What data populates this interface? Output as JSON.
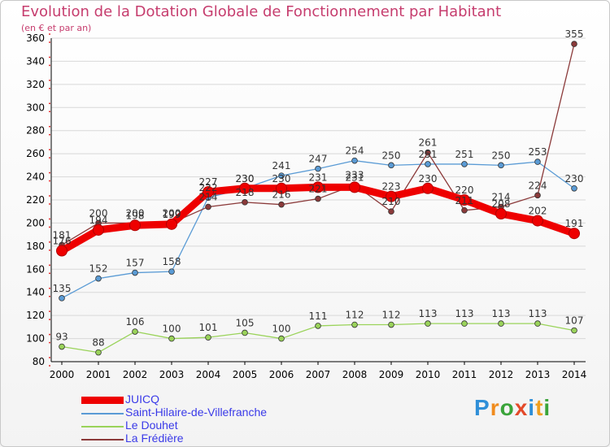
{
  "colors": {
    "title": "#c63d6e",
    "axis": "#000000",
    "grid": "#d8d8d8",
    "tick_mark": "#e03030",
    "value_label": "#333333",
    "legend_text": "#3a3ae8"
  },
  "chart_data": {
    "type": "line",
    "title": "Evolution de la Dotation Globale de Fonctionnement par Habitant",
    "subtitle": "(en € et par an)",
    "x": [
      2000,
      2001,
      2002,
      2003,
      2004,
      2005,
      2006,
      2007,
      2008,
      2009,
      2010,
      2011,
      2012,
      2013,
      2014
    ],
    "x_labels": [
      "2000",
      "2001",
      "2002",
      "2003",
      "2004",
      "2005",
      "2006",
      "2007",
      "2008",
      "2009",
      "2010",
      "2011",
      "2012",
      "2013",
      "2014"
    ],
    "ylim": [
      80,
      360
    ],
    "yticks": [
      80,
      100,
      120,
      140,
      160,
      180,
      200,
      220,
      240,
      260,
      280,
      300,
      320,
      340,
      360
    ],
    "grid": "horizontal",
    "legend_position": "bottom-left",
    "series": [
      {
        "name": "JUICQ",
        "color": "#ee0000",
        "highlight": true,
        "values": [
          176,
          194,
          198,
          199,
          227,
          230,
          230,
          231,
          231,
          223,
          230,
          220,
          208,
          202,
          191
        ],
        "labels": [
          "176",
          "194",
          "198",
          "199",
          "227",
          "230",
          "230",
          "231",
          "231",
          "223",
          "230",
          "220",
          "208",
          "202",
          "191"
        ]
      },
      {
        "name": "Saint-Hilaire-de-Villefranche",
        "color": "#5a9bd5",
        "highlight": false,
        "values": [
          135,
          152,
          157,
          158,
          222,
          230,
          241,
          247,
          254,
          250,
          251,
          251,
          250,
          253,
          230
        ],
        "labels": [
          "135",
          "152",
          "157",
          "158",
          "222",
          "230",
          "241",
          "247",
          "254",
          "250",
          "251",
          "251",
          "250",
          "253",
          "230"
        ]
      },
      {
        "name": "Le Douhet",
        "color": "#9ad35a",
        "highlight": false,
        "values": [
          93,
          88,
          106,
          100,
          101,
          105,
          100,
          111,
          112,
          112,
          113,
          113,
          113,
          113,
          107
        ],
        "labels": [
          "93",
          "88",
          "106",
          "100",
          "101",
          "105",
          "100",
          "111",
          "112",
          "112",
          "113",
          "113",
          "113",
          "113",
          "107"
        ]
      },
      {
        "name": "La Frédière",
        "color": "#8b3a3a",
        "highlight": false,
        "values": [
          181,
          200,
          200,
          200,
          214,
          218,
          216,
          221,
          233,
          210,
          261,
          211,
          214,
          224,
          355
        ],
        "labels": [
          "181",
          "200",
          "200",
          "200",
          "214",
          "218",
          "216",
          "221",
          "233",
          "210",
          "261",
          "211",
          "214",
          "224",
          "355"
        ]
      }
    ]
  },
  "brand": {
    "letters": [
      "P",
      "r",
      "o",
      "x",
      "i",
      "t",
      "i"
    ],
    "colors": [
      "#2f8fd8",
      "#f08c1e",
      "#3aa43a",
      "#e34a2a",
      "#2f8fd8",
      "#f0a020",
      "#3aa43a"
    ]
  }
}
